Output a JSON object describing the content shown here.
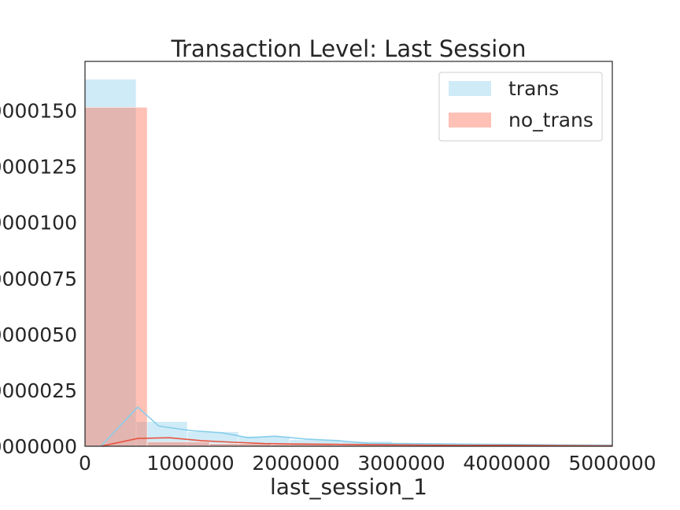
{
  "chart_data": {
    "type": "bar",
    "title": "Transaction Level: Last Session",
    "xlabel": "last_session_1",
    "ylabel": "",
    "xlim": [
      0,
      5000000
    ],
    "ylim": [
      0,
      1.72e-06
    ],
    "x_ticks": [
      0,
      1000000,
      2000000,
      3000000,
      4000000,
      5000000
    ],
    "x_tick_labels": [
      "0",
      "1000000",
      "2000000",
      "3000000",
      "4000000",
      "5000000"
    ],
    "y_ticks": [
      0,
      2.5e-07,
      5e-07,
      7.5e-07,
      1e-06,
      1.25e-06,
      1.5e-06
    ],
    "y_tick_labels": [
      "0000000",
      "0000025",
      "0000050",
      "0000075",
      "0000100",
      "0000125",
      "0000150"
    ],
    "grid": false,
    "legend_position": "top-right",
    "series": [
      {
        "name": "trans",
        "color": "#87ceeb",
        "opacity": 0.4,
        "bins": [
          {
            "x0": 0,
            "x1": 485000,
            "value": 1.64e-06
          },
          {
            "x0": 485000,
            "x1": 970000,
            "value": 1.1e-07
          },
          {
            "x0": 970000,
            "x1": 1455000,
            "value": 6.5e-08
          },
          {
            "x0": 1455000,
            "x1": 1940000,
            "value": 4.5e-08
          },
          {
            "x0": 1940000,
            "x1": 2425000,
            "value": 3e-08
          },
          {
            "x0": 2425000,
            "x1": 2910000,
            "value": 2.2e-08
          },
          {
            "x0": 2910000,
            "x1": 3395000,
            "value": 1.4e-08
          },
          {
            "x0": 3395000,
            "x1": 3880000,
            "value": 1e-08
          },
          {
            "x0": 3880000,
            "x1": 4365000,
            "value": 8e-09
          },
          {
            "x0": 4365000,
            "x1": 4850000,
            "value": 7e-09
          },
          {
            "x0": 4850000,
            "x1": 5000000,
            "value": 6e-09
          }
        ],
        "kde": {
          "x": [
            150000,
            500000,
            700000,
            1000000,
            1300000,
            1550000,
            1800000,
            2100000,
            2400000,
            2700000,
            3000000,
            3500000,
            4000000,
            4500000,
            5000000
          ],
          "y": [
            0,
            1.75e-07,
            9e-08,
            7e-08,
            6e-08,
            3.8e-08,
            4.5e-08,
            3.2e-08,
            2.5e-08,
            1.2e-08,
            1.2e-08,
            1e-08,
            8e-09,
            6e-09,
            5e-09
          ]
        }
      },
      {
        "name": "no_trans",
        "color": "#ff6347",
        "opacity": 0.4,
        "bins": [
          {
            "x0": 0,
            "x1": 590000,
            "value": 1.515e-06
          },
          {
            "x0": 590000,
            "x1": 1180000,
            "value": 2e-08
          },
          {
            "x0": 1180000,
            "x1": 1770000,
            "value": 1.2e-08
          },
          {
            "x0": 1770000,
            "x1": 2360000,
            "value": 8e-09
          },
          {
            "x0": 2360000,
            "x1": 2950000,
            "value": 6e-09
          },
          {
            "x0": 2950000,
            "x1": 3540000,
            "value": 4e-09
          },
          {
            "x0": 3540000,
            "x1": 4130000,
            "value": 3e-09
          },
          {
            "x0": 4130000,
            "x1": 4720000,
            "value": 3e-09
          },
          {
            "x0": 4720000,
            "x1": 5000000,
            "value": 2e-09
          }
        ],
        "kde": {
          "x": [
            150000,
            500000,
            800000,
            1100000,
            1400000,
            1700000,
            2000000,
            2500000,
            3000000,
            3500000,
            4000000,
            4500000,
            5000000
          ],
          "y": [
            0,
            3.5e-08,
            3.8e-08,
            2.5e-08,
            1.8e-08,
            1.2e-08,
            1e-08,
            8e-09,
            6e-09,
            4e-09,
            4e-09,
            3e-09,
            2e-09
          ]
        }
      }
    ]
  }
}
